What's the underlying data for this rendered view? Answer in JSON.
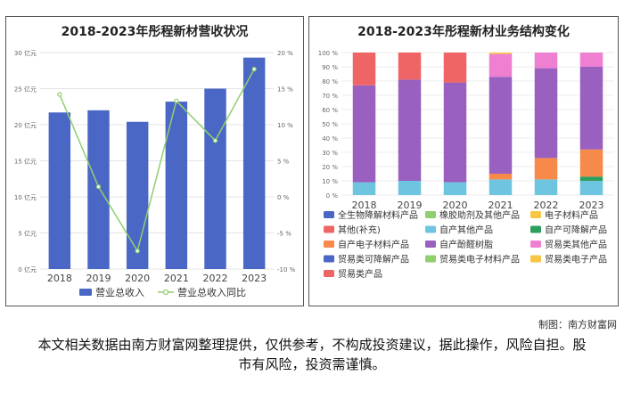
{
  "chart_data": [
    {
      "type": "bar",
      "title": "2018-2023年彤程新材营收状况",
      "categories": [
        "2018",
        "2019",
        "2020",
        "2021",
        "2022",
        "2023"
      ],
      "series": [
        {
          "name": "营业总收入",
          "type": "bar",
          "axis": "left",
          "values": [
            21.7,
            22.0,
            20.4,
            23.2,
            25.0,
            29.3
          ],
          "color": "#4a67c6"
        },
        {
          "name": "营业总收入同比",
          "type": "line",
          "axis": "right",
          "values": [
            14.2,
            1.4,
            -7.5,
            13.3,
            7.8,
            17.7
          ],
          "color": "#8fcf6e"
        }
      ],
      "ylim_left": [
        0,
        30
      ],
      "yticks_left": [
        "0 亿元",
        "5 亿元",
        "10 亿元",
        "15 亿元",
        "20 亿元",
        "25 亿元",
        "30 亿元"
      ],
      "ylim_right": [
        -10,
        20
      ],
      "yticks_right": [
        "-10 %",
        "-5 %",
        "0 %",
        "5 %",
        "10 %",
        "15 %",
        "20 %"
      ],
      "grid": true,
      "legend_position": "bottom"
    },
    {
      "type": "bar",
      "stacked": true,
      "percent": true,
      "title": "2018-2023年彤程新材业务结构变化",
      "categories": [
        "2018",
        "2019",
        "2020",
        "2021",
        "2022",
        "2023"
      ],
      "series": [
        {
          "name": "全生物降解材料产品",
          "color": "#4a67c6",
          "values": [
            0,
            0,
            0,
            0,
            0,
            0
          ]
        },
        {
          "name": "橡胶助剂及其他产品",
          "color": "#8fcf6e",
          "values": [
            0,
            0,
            0,
            0,
            0,
            0
          ]
        },
        {
          "name": "电子材料产品",
          "color": "#f6c744",
          "values": [
            0,
            0,
            0,
            0,
            0,
            0
          ]
        },
        {
          "name": "其他(补充)",
          "color": "#ef6565",
          "values": [
            0,
            0,
            0,
            0,
            0,
            0
          ]
        },
        {
          "name": "自产其他产品",
          "color": "#6ec5e0",
          "values": [
            9,
            10,
            9,
            11,
            11,
            10
          ]
        },
        {
          "name": "自产可降解产品",
          "color": "#2e9e5e",
          "values": [
            0,
            0,
            0,
            0,
            0,
            3
          ]
        },
        {
          "name": "自产电子材料产品",
          "color": "#f7894a",
          "values": [
            0,
            0,
            0,
            4,
            15,
            19
          ]
        },
        {
          "name": "自产酚醛树脂",
          "color": "#9960c0",
          "values": [
            68,
            71,
            70,
            68,
            63,
            58
          ]
        },
        {
          "name": "贸易类其他产品",
          "color": "#ef7fd1",
          "values": [
            0,
            0,
            0,
            16,
            11,
            10
          ]
        },
        {
          "name": "贸易类可降解产品",
          "color": "#4a67c6",
          "values": [
            0,
            0,
            0,
            0,
            0,
            0
          ]
        },
        {
          "name": "贸易类电子材料产品",
          "color": "#8fcf6e",
          "values": [
            0,
            0,
            0,
            0,
            0,
            0
          ]
        },
        {
          "name": "贸易类电子产品",
          "color": "#f6c744",
          "values": [
            0,
            0,
            0,
            1,
            0,
            0
          ]
        },
        {
          "name": "贸易类产品",
          "color": "#ef6565",
          "values": [
            23,
            19,
            21,
            0,
            0,
            0
          ]
        }
      ],
      "ylim": [
        0,
        100
      ],
      "yticks": [
        "0 %",
        "10 %",
        "20 %",
        "30 %",
        "40 %",
        "50 %",
        "60 %",
        "70 %",
        "80 %",
        "90 %",
        "100 %"
      ],
      "legend_position": "bottom"
    }
  ],
  "footer": {
    "credit": "制图：南方财富网",
    "disclaimer": "本文相关数据由南方财富网整理提供，仅供参考，不构成投资建议，据此操作，风险自担。股市有风险，投资需谨慎。"
  }
}
